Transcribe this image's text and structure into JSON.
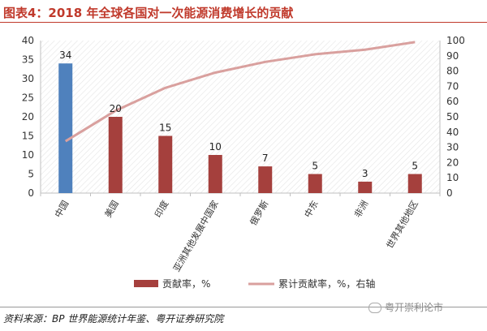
{
  "title": "图表4：2018 年全球各国对一次能源消费增长的贡献",
  "source": "资料来源：BP 世界能源统计年鉴、粤开证券研究院",
  "watermark": "粤开崇利论市",
  "chart_data": {
    "type": "bar",
    "categories": [
      "中国",
      "美国",
      "印度",
      "亚洲其他发展中国家",
      "俄罗斯",
      "中东",
      "非洲",
      "世界其他地区"
    ],
    "series": [
      {
        "name": "贡献率，%",
        "type": "bar",
        "axis": "left",
        "values": [
          34,
          20,
          15,
          10,
          7,
          5,
          3,
          5
        ]
      },
      {
        "name": "累计贡献率，%，右轴",
        "type": "line",
        "axis": "right",
        "values": [
          34,
          54,
          69,
          79,
          86,
          91,
          94,
          99
        ]
      }
    ],
    "ylim": [
      0,
      40
    ],
    "y2lim": [
      0,
      100
    ],
    "yticks": [
      0,
      5,
      10,
      15,
      20,
      25,
      30,
      35,
      40
    ],
    "y2ticks": [
      0,
      10,
      20,
      30,
      40,
      50,
      60,
      70,
      80,
      90,
      100
    ],
    "grid": "diagonal-hatch",
    "legend_position": "bottom",
    "colors": {
      "highlight_bar": "#4f81bd",
      "bar": "#a5403d",
      "line": "#d9a09e"
    }
  }
}
